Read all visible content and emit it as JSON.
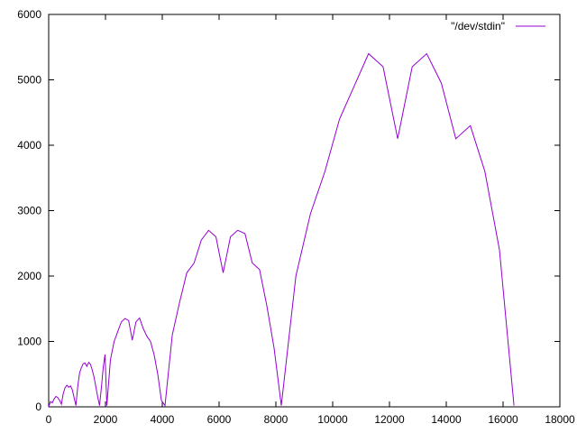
{
  "chart_data": {
    "type": "line",
    "title": "",
    "xlabel": "",
    "ylabel": "",
    "xlim": [
      0,
      18000
    ],
    "ylim": [
      0,
      6000
    ],
    "x_ticks": [
      "0",
      "2000",
      "4000",
      "6000",
      "8000",
      "10000",
      "12000",
      "14000",
      "16000",
      "18000"
    ],
    "y_ticks": [
      "0",
      "1000",
      "2000",
      "3000",
      "4000",
      "5000",
      "6000"
    ],
    "grid": false,
    "legend_position": "top-right",
    "series": [
      {
        "name": "\"/dev/stdin\"",
        "color": "#9400d3",
        "x": [
          0,
          64,
          128,
          192,
          256,
          320,
          384,
          448,
          512,
          576,
          640,
          704,
          768,
          832,
          896,
          960,
          1024,
          1088,
          1152,
          1216,
          1280,
          1344,
          1408,
          1472,
          1536,
          1600,
          1664,
          1728,
          1792,
          1856,
          1920,
          1984,
          2048,
          2176,
          2304,
          2432,
          2560,
          2688,
          2816,
          2944,
          3072,
          3200,
          3328,
          3456,
          3584,
          3712,
          3840,
          3968,
          4096,
          4352,
          4608,
          4864,
          5120,
          5376,
          5632,
          5888,
          6144,
          6400,
          6656,
          6912,
          7168,
          7424,
          7680,
          7936,
          8192,
          8704,
          9216,
          9728,
          10240,
          10752,
          11264,
          11776,
          12288,
          12800,
          13312,
          13824,
          14336,
          14848,
          15360,
          15872,
          16384
        ],
        "y": [
          0,
          80,
          60,
          120,
          160,
          140,
          100,
          40,
          200,
          290,
          330,
          300,
          320,
          260,
          140,
          20,
          320,
          520,
          600,
          660,
          670,
          620,
          680,
          650,
          560,
          450,
          300,
          150,
          20,
          300,
          600,
          800,
          20,
          720,
          1000,
          1150,
          1300,
          1350,
          1320,
          1020,
          1300,
          1360,
          1200,
          1080,
          1000,
          800,
          500,
          100,
          20,
          1100,
          1600,
          2050,
          2200,
          2550,
          2700,
          2600,
          2050,
          2600,
          2700,
          2650,
          2200,
          2100,
          1550,
          900,
          20,
          2000,
          2950,
          3600,
          4400,
          4900,
          5400,
          5200,
          4100,
          5200,
          5400,
          4950,
          4100,
          4300,
          3600,
          2400,
          20
        ]
      }
    ]
  }
}
